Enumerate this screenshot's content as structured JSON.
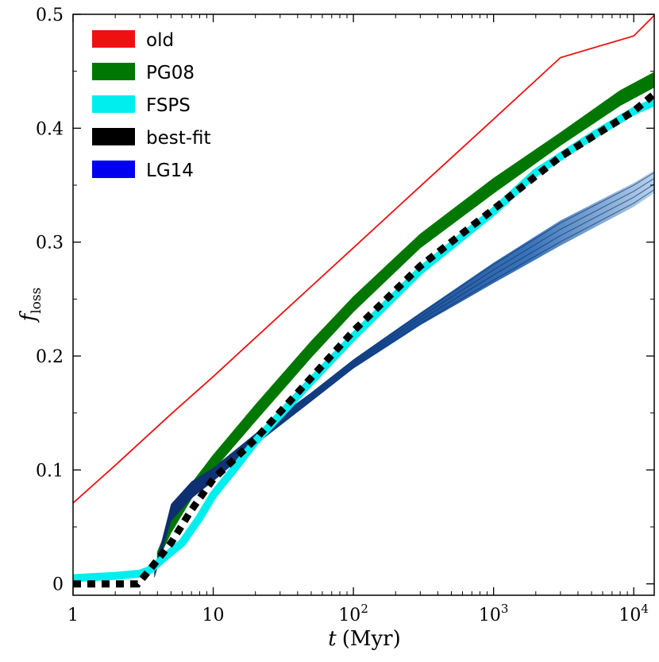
{
  "chart_data": {
    "type": "line",
    "xscale": "log",
    "xlim": [
      1,
      14000
    ],
    "ylim": [
      -0.01,
      0.5
    ],
    "xlabel_var": "t",
    "xlabel_unit": "(Myr)",
    "ylabel_var": "f",
    "ylabel_sub": "loss",
    "x_ticks": [
      {
        "value": 1,
        "base": "1",
        "exp": ""
      },
      {
        "value": 10,
        "base": "10",
        "exp": ""
      },
      {
        "value": 100,
        "base": "10",
        "exp": "2"
      },
      {
        "value": 1000,
        "base": "10",
        "exp": "3"
      },
      {
        "value": 10000,
        "base": "10",
        "exp": "4"
      }
    ],
    "y_ticks": [
      {
        "value": 0,
        "label": "0"
      },
      {
        "value": 0.1,
        "label": "0.1"
      },
      {
        "value": 0.2,
        "label": "0.2"
      },
      {
        "value": 0.3,
        "label": "0.3"
      },
      {
        "value": 0.4,
        "label": "0.4"
      },
      {
        "value": 0.5,
        "label": "0.5"
      }
    ],
    "legend_position": "top-left",
    "series": [
      {
        "name": "old",
        "style": "line",
        "color": "#ee1111",
        "x": [
          1,
          2,
          5,
          10,
          30,
          100,
          300,
          1000,
          3000,
          10000,
          14000
        ],
        "y": [
          0.071,
          0.104,
          0.149,
          0.182,
          0.236,
          0.295,
          0.349,
          0.408,
          0.462,
          0.481,
          0.499
        ]
      },
      {
        "name": "PG08",
        "style": "band",
        "color": "#007700",
        "x": [
          4,
          5,
          7,
          10,
          20,
          50,
          100,
          300,
          1000,
          3000,
          8000,
          14000
        ],
        "y_low": [
          0.02,
          0.045,
          0.075,
          0.1,
          0.143,
          0.199,
          0.239,
          0.295,
          0.343,
          0.385,
          0.42,
          0.436
        ],
        "y_high": [
          0.028,
          0.056,
          0.088,
          0.113,
          0.157,
          0.213,
          0.252,
          0.307,
          0.356,
          0.396,
          0.433,
          0.449
        ]
      },
      {
        "name": "FSPS",
        "style": "thick-line",
        "color": "#00eeee",
        "x": [
          1,
          2,
          3,
          3.5,
          4,
          5,
          6,
          8,
          10,
          15,
          20,
          50,
          100,
          300,
          1000,
          2000,
          5000,
          10000,
          14000
        ],
        "y": [
          0.005,
          0.007,
          0.009,
          0.012,
          0.018,
          0.028,
          0.036,
          0.058,
          0.078,
          0.105,
          0.125,
          0.178,
          0.217,
          0.275,
          0.327,
          0.361,
          0.393,
          0.415,
          0.423
        ]
      },
      {
        "name": "best-fit",
        "style": "dotted",
        "color": "#000000",
        "x": [
          1,
          2,
          2.9,
          3.5,
          5,
          7,
          10,
          20,
          50,
          100,
          300,
          1000,
          3000,
          10000,
          14000
        ],
        "y": [
          0,
          0,
          0,
          0.012,
          0.036,
          0.065,
          0.092,
          0.127,
          0.181,
          0.222,
          0.279,
          0.329,
          0.375,
          0.415,
          0.43
        ]
      },
      {
        "name": "LG14",
        "style": "gradient-band",
        "color": "#0000ff",
        "x": [
          3.8,
          5,
          7,
          10,
          20,
          50,
          100,
          300,
          1000,
          3000,
          10000,
          14000
        ],
        "y_low": [
          0.005,
          0.055,
          0.075,
          0.09,
          0.122,
          0.16,
          0.189,
          0.227,
          0.264,
          0.297,
          0.331,
          0.343
        ],
        "y_high": [
          0.012,
          0.07,
          0.09,
          0.102,
          0.132,
          0.168,
          0.197,
          0.238,
          0.282,
          0.319,
          0.352,
          0.363
        ]
      }
    ]
  }
}
